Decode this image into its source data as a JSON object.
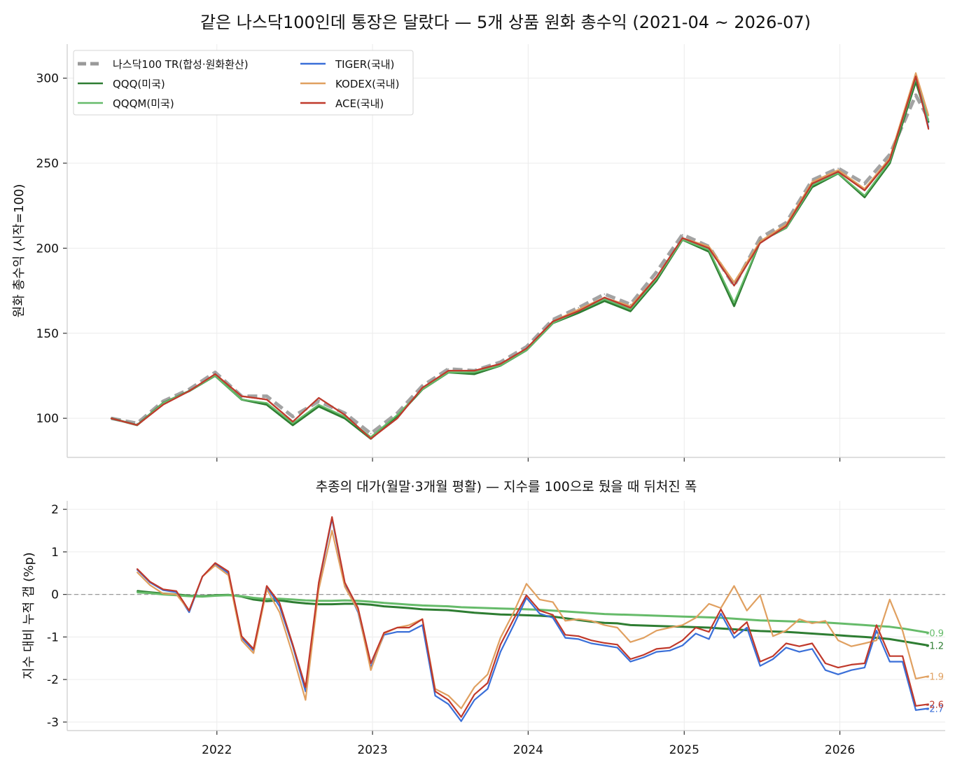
{
  "title": "같은 나스닥100인데 통장은 달랐다 — 5개 상품 원화 총수익 (2021-04 ~ 2026-07)",
  "chart_data": [
    {
      "type": "line",
      "ylabel": "원화 총수익 (시작=100)",
      "ylim": [
        77,
        320
      ],
      "xlim": [
        "2021-01-15",
        "2026-09-05"
      ],
      "yticks": [
        100,
        150,
        200,
        250,
        300
      ],
      "ytick_labels": [
        "100",
        "150",
        "200",
        "250",
        "300"
      ],
      "grid": true,
      "legend": {
        "placement": "top-left",
        "columns": 2
      },
      "x": [
        "2021-04",
        "2021-06",
        "2021-08",
        "2021-10",
        "2021-12",
        "2022-02",
        "2022-04",
        "2022-06",
        "2022-08",
        "2022-10",
        "2022-12",
        "2023-02",
        "2023-04",
        "2023-06",
        "2023-08",
        "2023-10",
        "2023-12",
        "2024-02",
        "2024-04",
        "2024-06",
        "2024-08",
        "2024-10",
        "2024-12",
        "2025-02",
        "2025-04",
        "2025-06",
        "2025-08",
        "2025-10",
        "2025-12",
        "2026-02",
        "2026-04",
        "2026-06",
        "2026-07"
      ],
      "series": [
        {
          "name": "나스닥100 TR(합성·원화환산)",
          "color": "#999999",
          "dashed": true,
          "values": [
            100,
            97,
            110,
            117,
            127,
            113,
            113,
            101,
            110,
            103,
            91,
            103,
            119,
            129,
            128,
            133,
            142,
            158,
            165,
            173,
            167,
            186,
            208,
            201,
            178,
            206,
            215,
            240,
            247,
            238,
            255,
            290,
            276
          ]
        },
        {
          "name": "QQQ(미국)",
          "color": "#2e7d32",
          "values": [
            100,
            96,
            109,
            116,
            125,
            111,
            108,
            96,
            107,
            100,
            88,
            101,
            117,
            127,
            126,
            131,
            140,
            156,
            162,
            169,
            163,
            181,
            205,
            198,
            166,
            204,
            212,
            236,
            244,
            230,
            250,
            298,
            274
          ]
        },
        {
          "name": "QQQM(미국)",
          "color": "#66bb6a",
          "values": [
            100,
            96,
            109,
            116,
            125,
            111,
            109,
            97,
            108,
            101,
            89,
            102,
            117,
            127,
            127,
            131,
            140,
            156,
            163,
            170,
            164,
            182,
            205,
            199,
            168,
            204,
            212,
            237,
            244,
            231,
            251,
            300,
            275
          ]
        },
        {
          "name": "TIGER(국내)",
          "color": "#3a6fd8",
          "values": [
            100,
            96,
            108,
            116,
            126,
            113,
            111,
            98,
            112,
            102,
            88,
            100,
            118,
            128,
            128,
            132,
            141,
            157,
            163,
            171,
            165,
            183,
            206,
            200,
            178,
            203,
            213,
            238,
            245,
            234,
            252,
            301,
            271
          ]
        },
        {
          "name": "KODEX(국내)",
          "color": "#e0a060",
          "values": [
            100,
            96,
            108,
            116,
            126,
            113,
            111,
            98,
            112,
            102,
            88,
            100,
            118,
            128,
            128,
            132,
            141,
            157,
            164,
            171,
            166,
            183,
            206,
            201,
            180,
            204,
            214,
            239,
            246,
            235,
            253,
            303,
            278
          ]
        },
        {
          "name": "ACE(국내)",
          "color": "#c0392b",
          "values": [
            100,
            96,
            108,
            116,
            126,
            113,
            111,
            98,
            112,
            102,
            88,
            100,
            118,
            128,
            128,
            132,
            141,
            157,
            163,
            171,
            165,
            183,
            206,
            200,
            178,
            203,
            213,
            238,
            245,
            234,
            252,
            301,
            270
          ]
        }
      ]
    },
    {
      "type": "line",
      "title": "추종의 대가(월말·3개월 평활) — 지수를 100으로 뒀을 때 뒤처진 폭",
      "ylabel": "지수 대비 누적 갭 (%p)",
      "ylim": [
        -3.2,
        2.2
      ],
      "xlim": [
        "2021-01-15",
        "2026-09-05"
      ],
      "yticks": [
        -3,
        -2,
        -1,
        0,
        1,
        2
      ],
      "ytick_labels": [
        "-3",
        "-2",
        "-1",
        "0",
        "1",
        "2"
      ],
      "xticks": [
        "2022-01-01",
        "2023-01-01",
        "2024-01-01",
        "2025-01-01",
        "2026-01-01"
      ],
      "xtick_labels": [
        "2022",
        "2023",
        "2024",
        "2025",
        "2026"
      ],
      "grid": true,
      "zero_line": true,
      "x": [
        "2021-06",
        "2021-07",
        "2021-08",
        "2021-09",
        "2021-10",
        "2021-11",
        "2021-12",
        "2022-01",
        "2022-02",
        "2022-03",
        "2022-04",
        "2022-05",
        "2022-06",
        "2022-07",
        "2022-08",
        "2022-09",
        "2022-10",
        "2022-11",
        "2022-12",
        "2023-01",
        "2023-02",
        "2023-03",
        "2023-04",
        "2023-05",
        "2023-06",
        "2023-07",
        "2023-08",
        "2023-09",
        "2023-10",
        "2023-11",
        "2023-12",
        "2024-01",
        "2024-02",
        "2024-03",
        "2024-04",
        "2024-05",
        "2024-06",
        "2024-07",
        "2024-08",
        "2024-09",
        "2024-10",
        "2024-11",
        "2024-12",
        "2025-01",
        "2025-02",
        "2025-03",
        "2025-04",
        "2025-05",
        "2025-06",
        "2025-07",
        "2025-08",
        "2025-09",
        "2025-10",
        "2025-11",
        "2025-12",
        "2026-01",
        "2026-02",
        "2026-03",
        "2026-04",
        "2026-05",
        "2026-06",
        "2026-07"
      ],
      "series": [
        {
          "name": "QQQ(미국)",
          "color": "#2e7d32",
          "end_label": "-1.2",
          "values": [
            0.08,
            0.05,
            0.02,
            0.0,
            -0.03,
            -0.04,
            -0.02,
            -0.01,
            -0.05,
            -0.12,
            -0.16,
            -0.14,
            -0.18,
            -0.21,
            -0.23,
            -0.23,
            -0.22,
            -0.22,
            -0.24,
            -0.28,
            -0.3,
            -0.32,
            -0.35,
            -0.36,
            -0.37,
            -0.4,
            -0.43,
            -0.45,
            -0.47,
            -0.48,
            -0.49,
            -0.5,
            -0.52,
            -0.56,
            -0.6,
            -0.64,
            -0.67,
            -0.68,
            -0.72,
            -0.73,
            -0.74,
            -0.75,
            -0.76,
            -0.77,
            -0.78,
            -0.8,
            -0.82,
            -0.84,
            -0.86,
            -0.87,
            -0.88,
            -0.9,
            -0.92,
            -0.94,
            -0.96,
            -0.98,
            -1.0,
            -1.02,
            -1.05,
            -1.1,
            -1.15,
            -1.2
          ]
        },
        {
          "name": "QQQM(미국)",
          "color": "#66bb6a",
          "end_label": "-0.9",
          "values": [
            0.05,
            0.03,
            0.0,
            -0.02,
            -0.04,
            -0.05,
            -0.03,
            -0.02,
            -0.04,
            -0.08,
            -0.11,
            -0.1,
            -0.12,
            -0.14,
            -0.15,
            -0.15,
            -0.14,
            -0.15,
            -0.17,
            -0.2,
            -0.22,
            -0.24,
            -0.26,
            -0.27,
            -0.28,
            -0.3,
            -0.31,
            -0.32,
            -0.33,
            -0.34,
            -0.35,
            -0.36,
            -0.38,
            -0.4,
            -0.42,
            -0.44,
            -0.46,
            -0.47,
            -0.48,
            -0.49,
            -0.5,
            -0.51,
            -0.52,
            -0.53,
            -0.54,
            -0.55,
            -0.57,
            -0.59,
            -0.61,
            -0.62,
            -0.63,
            -0.64,
            -0.65,
            -0.66,
            -0.68,
            -0.7,
            -0.72,
            -0.74,
            -0.76,
            -0.8,
            -0.85,
            -0.9
          ]
        },
        {
          "name": "TIGER(국내)",
          "color": "#3a6fd8",
          "end_label": "-2.7",
          "values": [
            0.58,
            0.28,
            0.1,
            0.05,
            -0.42,
            0.42,
            0.72,
            0.5,
            -1.02,
            -1.32,
            0.18,
            -0.28,
            -1.22,
            -2.28,
            0.25,
            1.78,
            0.25,
            -0.42,
            -1.72,
            -0.95,
            -0.88,
            -0.88,
            -0.72,
            -2.38,
            -2.58,
            -2.98,
            -2.48,
            -2.22,
            -1.35,
            -0.72,
            -0.08,
            -0.45,
            -0.55,
            -1.02,
            -1.05,
            -1.15,
            -1.2,
            -1.25,
            -1.58,
            -1.48,
            -1.35,
            -1.32,
            -1.2,
            -0.92,
            -1.05,
            -0.45,
            -1.02,
            -0.78,
            -1.68,
            -1.52,
            -1.25,
            -1.35,
            -1.28,
            -1.78,
            -1.88,
            -1.78,
            -1.72,
            -0.85,
            -1.58,
            -1.58,
            -2.72,
            -2.68
          ]
        },
        {
          "name": "KODEX(국내)",
          "color": "#e0a060",
          "end_label": "-1.9",
          "values": [
            0.52,
            0.22,
            0.02,
            0.0,
            -0.38,
            0.42,
            0.68,
            0.45,
            -1.08,
            -1.38,
            0.12,
            -0.42,
            -1.42,
            -2.48,
            0.12,
            1.5,
            0.18,
            -0.38,
            -1.78,
            -0.92,
            -0.78,
            -0.72,
            -0.58,
            -2.22,
            -2.38,
            -2.68,
            -2.18,
            -1.88,
            -1.02,
            -0.42,
            0.25,
            -0.12,
            -0.18,
            -0.62,
            -0.58,
            -0.62,
            -0.72,
            -0.78,
            -1.12,
            -1.02,
            -0.85,
            -0.78,
            -0.72,
            -0.55,
            -0.22,
            -0.32,
            0.2,
            -0.38,
            -0.02,
            -0.98,
            -0.85,
            -0.58,
            -0.68,
            -0.62,
            -1.08,
            -1.22,
            -1.15,
            -1.08,
            -0.12,
            -0.85,
            -1.98,
            -1.92
          ]
        },
        {
          "name": "ACE(국내)",
          "color": "#c0392b",
          "end_label": "-2.6",
          "values": [
            0.6,
            0.3,
            0.12,
            0.08,
            -0.38,
            0.42,
            0.74,
            0.54,
            -0.98,
            -1.28,
            0.2,
            -0.2,
            -1.18,
            -2.18,
            0.28,
            1.82,
            0.28,
            -0.32,
            -1.62,
            -0.9,
            -0.78,
            -0.78,
            -0.58,
            -2.28,
            -2.48,
            -2.88,
            -2.35,
            -2.08,
            -1.18,
            -0.58,
            -0.02,
            -0.38,
            -0.48,
            -0.95,
            -0.98,
            -1.08,
            -1.14,
            -1.18,
            -1.52,
            -1.42,
            -1.28,
            -1.25,
            -1.08,
            -0.78,
            -0.88,
            -0.35,
            -0.92,
            -0.65,
            -1.58,
            -1.45,
            -1.15,
            -1.22,
            -1.15,
            -1.62,
            -1.72,
            -1.65,
            -1.62,
            -0.72,
            -1.45,
            -1.45,
            -2.62,
            -2.58
          ]
        }
      ]
    }
  ]
}
